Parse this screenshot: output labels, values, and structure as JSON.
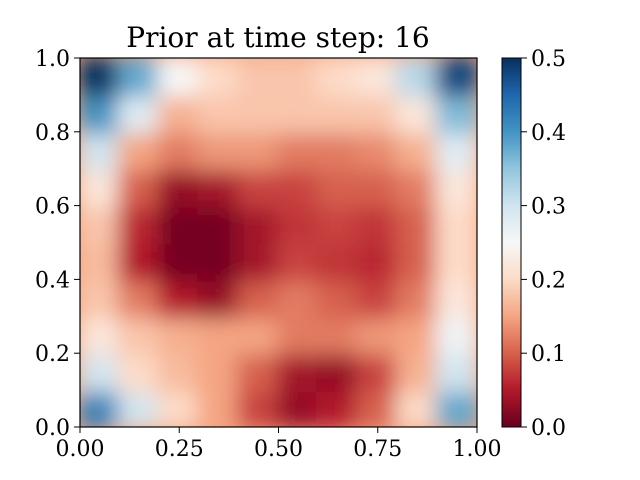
{
  "chart_data": {
    "type": "heatmap",
    "title": "Prior at time step: 16",
    "xlabel": "",
    "ylabel": "",
    "xlim": [
      0,
      1
    ],
    "ylim": [
      0,
      1
    ],
    "x_ticks": [
      "0.00",
      "0.25",
      "0.50",
      "0.75",
      "1.00"
    ],
    "x_tick_values": [
      0,
      0.25,
      0.5,
      0.75,
      1.0
    ],
    "y_ticks": [
      "0.0",
      "0.2",
      "0.4",
      "0.6",
      "0.8",
      "1.0"
    ],
    "y_tick_values": [
      0,
      0.2,
      0.4,
      0.6,
      0.8,
      1.0
    ],
    "colorbar": {
      "colormap": "RdBu",
      "range": [
        0,
        0.5
      ],
      "ticks": [
        "0.0",
        "0.1",
        "0.2",
        "0.3",
        "0.4",
        "0.5"
      ],
      "tick_values": [
        0,
        0.1,
        0.2,
        0.3,
        0.4,
        0.5
      ]
    },
    "grid": false,
    "grid_resolution": [
      10,
      10
    ],
    "z_rows_bottom_to_top": [
      [
        0.42,
        0.3,
        0.2,
        0.15,
        0.08,
        0.03,
        0.05,
        0.1,
        0.2,
        0.38
      ],
      [
        0.3,
        0.2,
        0.17,
        0.15,
        0.1,
        0.04,
        0.03,
        0.08,
        0.16,
        0.3
      ],
      [
        0.22,
        0.18,
        0.16,
        0.15,
        0.15,
        0.12,
        0.12,
        0.14,
        0.15,
        0.26
      ],
      [
        0.18,
        0.12,
        0.05,
        0.03,
        0.1,
        0.12,
        0.1,
        0.08,
        0.12,
        0.22
      ],
      [
        0.17,
        0.05,
        0.01,
        0.01,
        0.04,
        0.08,
        0.07,
        0.06,
        0.1,
        0.2
      ],
      [
        0.18,
        0.06,
        0.01,
        0.01,
        0.04,
        0.07,
        0.08,
        0.07,
        0.1,
        0.2
      ],
      [
        0.22,
        0.1,
        0.03,
        0.04,
        0.08,
        0.08,
        0.1,
        0.1,
        0.12,
        0.22
      ],
      [
        0.3,
        0.15,
        0.12,
        0.14,
        0.14,
        0.12,
        0.12,
        0.13,
        0.16,
        0.28
      ],
      [
        0.4,
        0.28,
        0.16,
        0.18,
        0.18,
        0.18,
        0.18,
        0.18,
        0.22,
        0.36
      ],
      [
        0.5,
        0.38,
        0.25,
        0.2,
        0.18,
        0.18,
        0.2,
        0.22,
        0.32,
        0.48
      ]
    ]
  }
}
